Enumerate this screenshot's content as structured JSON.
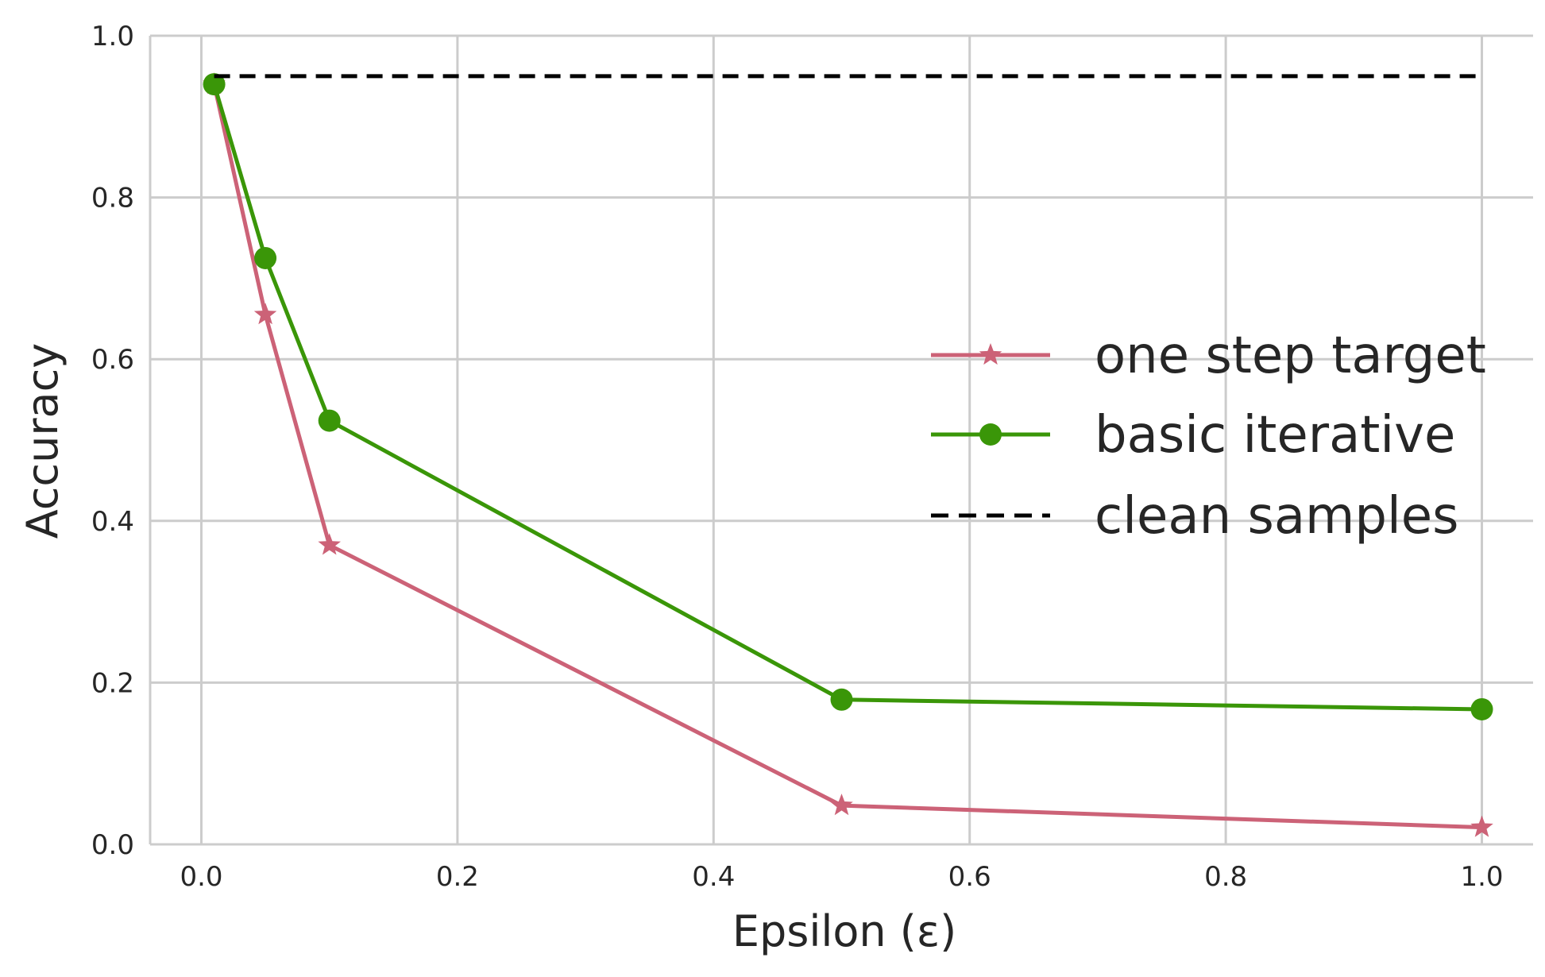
{
  "chart_data": {
    "type": "line",
    "title": "",
    "xlabel": "Epsilon (ε)",
    "ylabel": "Accuracy",
    "xlim": [
      -0.04,
      1.04
    ],
    "ylim": [
      0.0,
      1.0
    ],
    "grid": true,
    "legend_position": "center-right",
    "x_ticks": [
      0.0,
      0.2,
      0.4,
      0.6,
      0.8,
      1.0
    ],
    "x_tick_labels": [
      "0.0",
      "0.2",
      "0.4",
      "0.6",
      "0.8",
      "1.0"
    ],
    "y_ticks": [
      0.0,
      0.2,
      0.4,
      0.6,
      0.8,
      1.0
    ],
    "y_tick_labels": [
      "0.0",
      "0.2",
      "0.4",
      "0.6",
      "0.8",
      "1.0"
    ],
    "series": [
      {
        "name": "one step target",
        "color": "#cc6277",
        "marker": "star",
        "line_style": "solid",
        "x": [
          0.01,
          0.05,
          0.1,
          0.5,
          1.0
        ],
        "y": [
          0.94,
          0.655,
          0.37,
          0.048,
          0.021
        ]
      },
      {
        "name": "basic iterative",
        "color": "#3a9608",
        "marker": "circle",
        "line_style": "solid",
        "x": [
          0.01,
          0.05,
          0.1,
          0.5,
          1.0
        ],
        "y": [
          0.94,
          0.725,
          0.524,
          0.179,
          0.167
        ]
      },
      {
        "name": "clean samples",
        "color": "#000000",
        "marker": "none",
        "line_style": "dashed",
        "x": [
          0.01,
          1.0
        ],
        "y": [
          0.95,
          0.95
        ]
      }
    ]
  }
}
